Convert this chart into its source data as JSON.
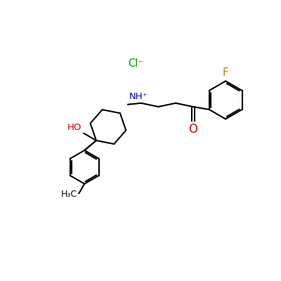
{
  "background_color": "#ffffff",
  "bond_color": "#000000",
  "bond_lw": 1.5,
  "ho_color": "#cc0000",
  "n_color": "#0000bb",
  "f_color": "#bb8800",
  "cl_color": "#009900",
  "o_color": "#cc0000",
  "font_size": 10,
  "ClMinus_label": "Cl⁻",
  "NH_label": "NH⁺",
  "HO_label": "HO",
  "O_label": "O",
  "F_label": "F",
  "CH3_label": "H₃C"
}
